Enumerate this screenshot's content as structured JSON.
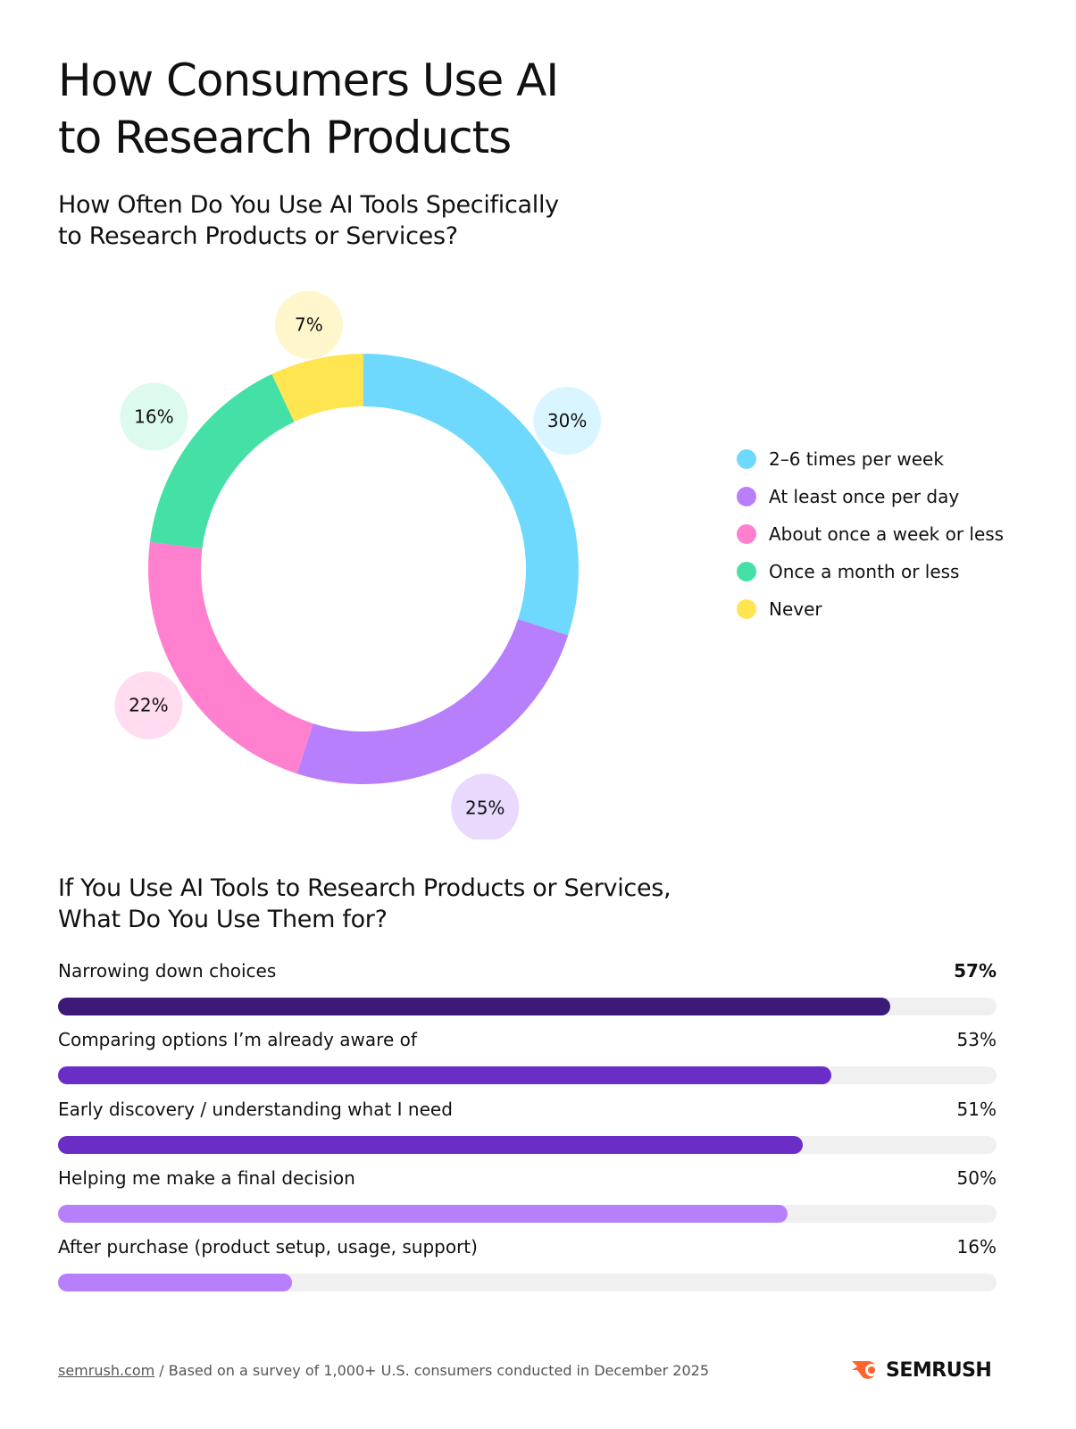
{
  "title_line1": "How Consumers Use AI",
  "title_line2": "to Research Products",
  "chart_data": [
    {
      "type": "pie",
      "title_line1": "How Often Do You Use AI Tools Specifically",
      "title_line2": "to Research Products or Services?",
      "donut": true,
      "slices": [
        {
          "label": "2–6 times per week",
          "value": 30,
          "display": "30%",
          "color": "#6fd9fd"
        },
        {
          "label": "At least once per day",
          "value": 25,
          "display": "25%",
          "color": "#b77ffb"
        },
        {
          "label": "About once a week or less",
          "value": 22,
          "display": "22%",
          "color": "#ff80cf"
        },
        {
          "label": "Once a month or less",
          "value": 16,
          "display": "16%",
          "color": "#45e0a5"
        },
        {
          "label": "Never",
          "value": 7,
          "display": "7%",
          "color": "#ffe54f"
        }
      ],
      "bubble_colors": [
        "#d9f5ff",
        "#e8d9fd",
        "#ffdcf0",
        "#dcfaee",
        "#fff6cc"
      ],
      "legend_position": "right"
    },
    {
      "type": "bar",
      "orientation": "horizontal",
      "title_line1": "If You Use AI Tools to Research Products or Services,",
      "title_line2": "What Do You Use Them for?",
      "categories": [
        "Narrowing down choices",
        "Comparing options I’m already aware of",
        "Early discovery / understanding what I need",
        "Helping me make a final decision",
        "After purchase (product setup, usage, support)"
      ],
      "values": [
        57,
        53,
        51,
        50,
        16
      ],
      "display": [
        "57%",
        "53%",
        "51%",
        "50%",
        "16%"
      ],
      "colors": [
        "#3d1a78",
        "#6a2ec6",
        "#6a2ec6",
        "#b77ffb",
        "#b77ffb"
      ]
    }
  ],
  "footer": {
    "link": "semrush.com",
    "note": " / Based on a survey of 1,000+ U.S. consumers conducted in December 2025"
  },
  "logo": {
    "text": "SEMRUSH",
    "color": "#ff642d"
  }
}
